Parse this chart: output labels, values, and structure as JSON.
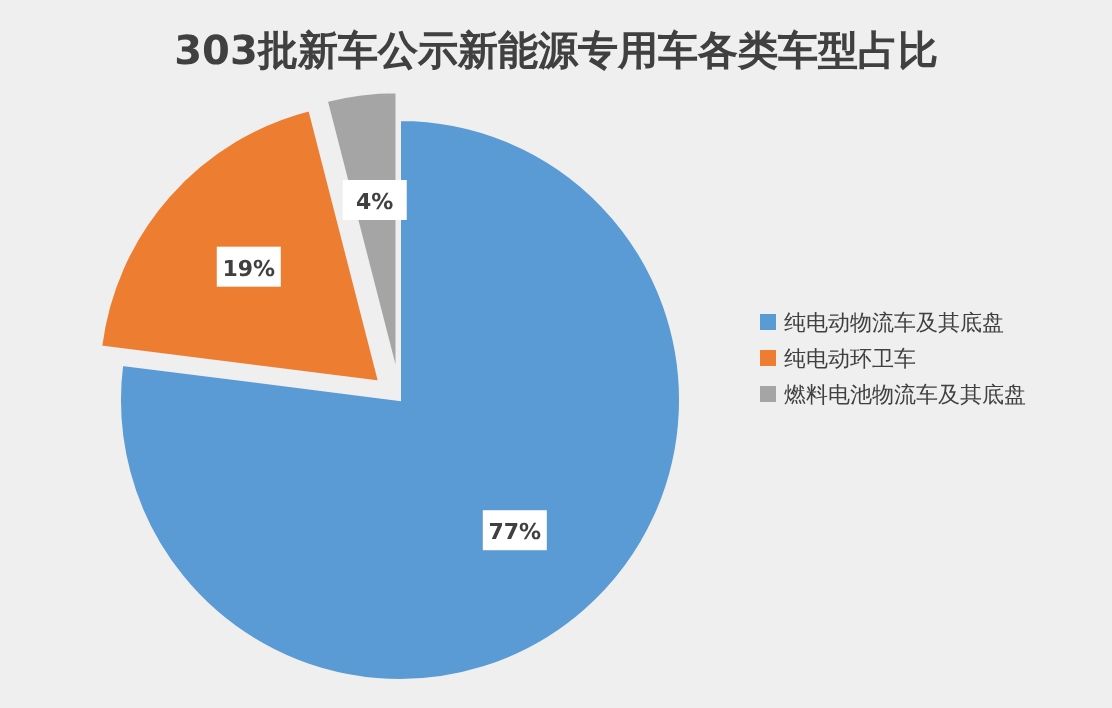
{
  "chart_data": {
    "type": "pie",
    "title": "303批新车公示新能源专用车各类车型占比",
    "categories": [
      "纯电动物流车及其底盘",
      "纯电动环卫车",
      "燃料电池物流车及其底盘"
    ],
    "values": [
      77,
      19,
      4
    ],
    "colors": [
      "#5b9bd5",
      "#ed7d31",
      "#a5a5a5"
    ],
    "value_labels": [
      "77%",
      "19%",
      "4%"
    ],
    "legend": "right"
  }
}
